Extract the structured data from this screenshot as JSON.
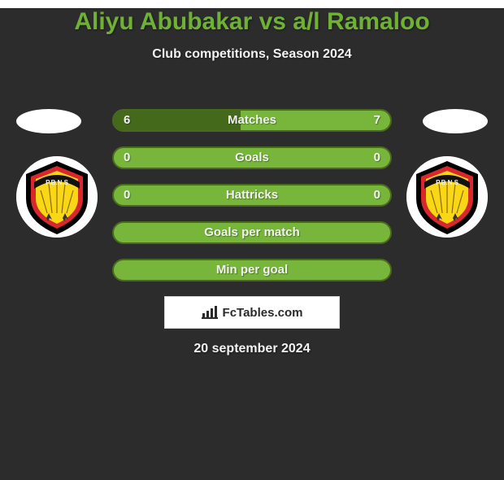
{
  "theme": {
    "background_color": "#2c2c2c",
    "title_color": "#6fb135",
    "text_color": "#f2f2f2",
    "pill_border": "#4a6a1f"
  },
  "title": "Aliyu Abubakar vs a/l Ramaloo",
  "title_fontsize": 30,
  "subtitle": "Club competitions, Season 2024",
  "subtitle_fontsize": 16,
  "date": "20 september 2024",
  "brand": {
    "label": "FcTables.com"
  },
  "player_left": {
    "country_flag_colors": [
      "#ffffff"
    ],
    "club": "P.B.N.S",
    "club_logo_colors": {
      "outer": "#000000",
      "mid": "#d9272e",
      "inner": "#f9d616",
      "ribbon_text": "P.B.N.S"
    }
  },
  "player_right": {
    "country_flag_colors": [
      "#ffffff"
    ],
    "club": "P.B.N.S",
    "club_logo_colors": {
      "outer": "#000000",
      "mid": "#d9272e",
      "inner": "#f9d616",
      "ribbon_text": "P.B.N.S"
    }
  },
  "stats": [
    {
      "label": "Matches",
      "left_value": "6",
      "right_value": "7",
      "left_pct": 46,
      "right_pct": 54,
      "left_color": "#45691b",
      "right_color": "#77b63a",
      "show_values": true
    },
    {
      "label": "Goals",
      "left_value": "0",
      "right_value": "0",
      "left_pct": 50,
      "right_pct": 50,
      "left_color": "#77b63a",
      "right_color": "#77b63a",
      "show_values": true,
      "no_fill": true
    },
    {
      "label": "Hattricks",
      "left_value": "0",
      "right_value": "0",
      "left_pct": 50,
      "right_pct": 50,
      "left_color": "#77b63a",
      "right_color": "#77b63a",
      "show_values": true,
      "no_fill": true
    },
    {
      "label": "Goals per match",
      "left_value": "",
      "right_value": "",
      "left_pct": 50,
      "right_pct": 50,
      "left_color": "#77b63a",
      "right_color": "#77b63a",
      "show_values": false,
      "no_fill": true
    },
    {
      "label": "Min per goal",
      "left_value": "",
      "right_value": "",
      "left_pct": 50,
      "right_pct": 50,
      "left_color": "#77b63a",
      "right_color": "#77b63a",
      "show_values": false,
      "no_fill": true
    }
  ]
}
